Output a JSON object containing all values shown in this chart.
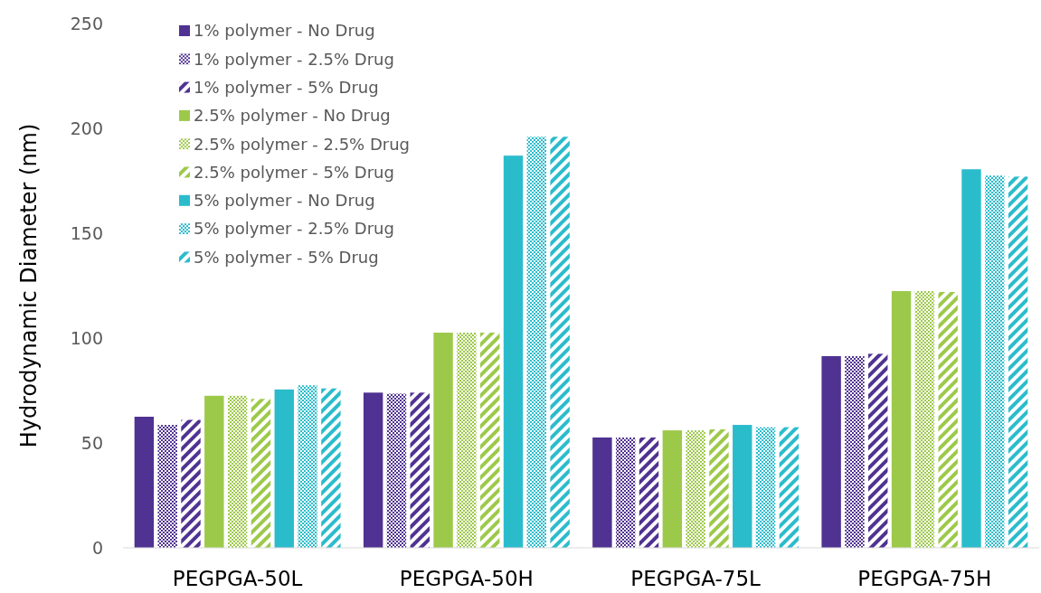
{
  "chart_data": {
    "type": "bar",
    "ylabel": "Hydrodynamic Diameter (nm)",
    "categories": [
      "PEGPGA-50L",
      "PEGPGA-50H",
      "PEGPGA-75L",
      "PEGPGA-75H"
    ],
    "series": [
      {
        "name": "1% polymer - No Drug",
        "color": "#4f3291",
        "values": [
          62.5,
          74,
          52.6,
          91.4
        ]
      },
      {
        "name": "1% polymer - 2.5% Drug",
        "color": "#4f3291",
        "values": [
          58.6,
          73.5,
          52.6,
          91.4
        ]
      },
      {
        "name": "1% polymer - 5% Drug",
        "color": "#4f3291",
        "values": [
          61,
          74,
          52.6,
          92.5
        ]
      },
      {
        "name": "2.5% polymer - No Drug",
        "color": "#9dc94a",
        "values": [
          72.5,
          102.6,
          56,
          122.4
        ]
      },
      {
        "name": "2.5% polymer - 2.5% Drug",
        "color": "#9dc94a",
        "values": [
          72.5,
          102.6,
          56,
          122.4
        ]
      },
      {
        "name": "2.5% polymer - 5% Drug",
        "color": "#9dc94a",
        "values": [
          71,
          102.6,
          56.5,
          122
        ]
      },
      {
        "name": "5% polymer - No Drug",
        "color": "#2bbccc",
        "values": [
          75.5,
          187,
          58.6,
          180.5
        ]
      },
      {
        "name": "5% polymer - 2.5% Drug",
        "color": "#2bbccc",
        "values": [
          77.5,
          196,
          57.5,
          177.5
        ]
      },
      {
        "name": "5% polymer - 5% Drug",
        "color": "#2bbccc",
        "values": [
          76,
          196,
          57.5,
          177
        ]
      }
    ],
    "ylim": [
      0,
      250
    ],
    "yticks": [
      0,
      50,
      100,
      150,
      200,
      250
    ],
    "grid": false,
    "legend": "top left"
  }
}
